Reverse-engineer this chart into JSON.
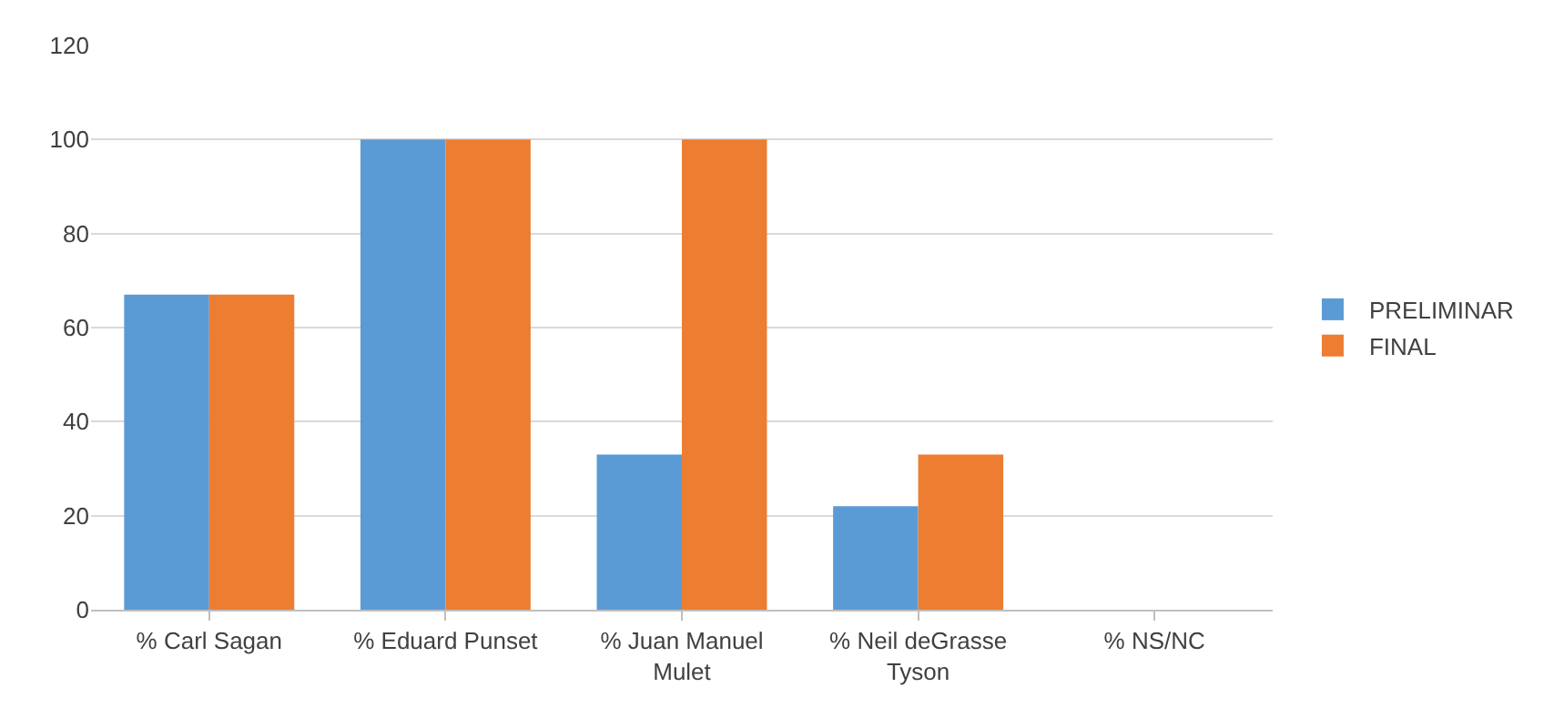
{
  "chart_data": {
    "type": "bar",
    "categories": [
      "% Carl Sagan",
      "% Eduard Punset",
      "% Juan Manuel\nMulet",
      "% Neil deGrasse\nTyson",
      "% NS/NC"
    ],
    "series": [
      {
        "name": "PRELIMINAR",
        "color": "#5b9bd5",
        "values": [
          67,
          100,
          33,
          22,
          0
        ]
      },
      {
        "name": "FINAL",
        "color": "#ed7d31",
        "values": [
          67,
          100,
          100,
          33,
          0
        ]
      }
    ],
    "ylim": [
      0,
      120
    ],
    "yticks": [
      0,
      20,
      40,
      60,
      80,
      100,
      120
    ],
    "grid": "y",
    "legend": "right"
  }
}
